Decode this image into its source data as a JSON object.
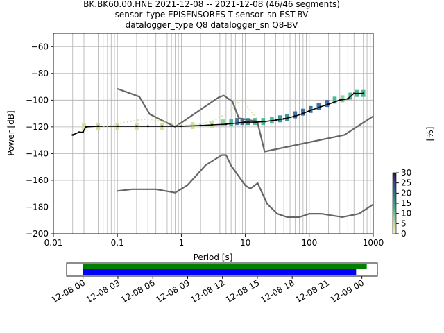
{
  "title_lines": [
    "BK.BK60.00.HNE   2021-12-08 -- 2021-12-08  (46/46 segments)",
    "sensor_type EPISENSORES-T sensor_sn EST-BV",
    "datalogger_type Q8 datalogger_sn Q8-BV"
  ],
  "chart_data": [
    {
      "type": "line",
      "subtype": "probabilistic power spectral density",
      "xlabel": "Period [s]",
      "ylabel": "Power [dB]",
      "xscale": "log",
      "xlim": [
        0.01,
        1000
      ],
      "ylim": [
        -200,
        -50
      ],
      "xticks": [
        0.01,
        0.1,
        1,
        10,
        100,
        1000
      ],
      "xtick_labels": [
        "0.01",
        "0.1",
        "1",
        "10",
        "100",
        "1000"
      ],
      "yticks": [
        -60,
        -80,
        -100,
        -120,
        -140,
        -160,
        -180,
        -200
      ],
      "ytick_labels": [
        "−60",
        "−80",
        "−100",
        "−120",
        "−140",
        "−160",
        "−180",
        "−200"
      ],
      "grid": true,
      "colorbar": {
        "label": "[%]",
        "range": [
          0,
          30
        ],
        "ticks": [
          0,
          5,
          10,
          15,
          20,
          25,
          30
        ],
        "tick_labels": [
          "0",
          "5",
          "10",
          "15",
          "20",
          "25",
          "30"
        ],
        "colors": [
          "#fde8b0",
          "#c8e090",
          "#7fcf9a",
          "#3cb08c",
          "#2a8c8c",
          "#2f6399",
          "#3b3b8f",
          "#301040"
        ]
      },
      "series": [
        {
          "role": "noise-model-high",
          "color": "#666666",
          "x": [
            0.1,
            0.22,
            0.32,
            0.8,
            3.8,
            4.6,
            6.3,
            7.9,
            15.4,
            20,
            354.8,
            1000
          ],
          "y": [
            -91.5,
            -97.4,
            -110.5,
            -120,
            -98,
            -96.5,
            -101,
            -113.5,
            -116,
            -138.5,
            -126,
            -112
          ]
        },
        {
          "role": "noise-model-low",
          "color": "#666666",
          "x": [
            0.1,
            0.17,
            0.4,
            0.8,
            1.24,
            2.4,
            4.3,
            5.0,
            6.0,
            10,
            12,
            15.6,
            21.9,
            31.6,
            45,
            70,
            101,
            154,
            328,
            600,
            1000
          ],
          "y": [
            -168,
            -166.7,
            -166.7,
            -169.2,
            -163.7,
            -148.6,
            -141.1,
            -141.1,
            -149,
            -163.8,
            -166.2,
            -162.1,
            -177.5,
            -185,
            -187.5,
            -187.5,
            -185,
            -185,
            -187.5,
            -185,
            -178
          ]
        },
        {
          "role": "mode",
          "color": "#000000",
          "x": [
            0.02,
            0.025,
            0.029,
            0.032,
            0.05,
            0.1,
            0.2,
            0.3,
            0.5,
            1,
            2,
            3,
            5,
            8,
            10,
            15,
            20,
            30,
            40,
            60,
            80,
            100,
            150,
            200,
            300,
            400,
            500,
            700
          ],
          "y": [
            -126,
            -124,
            -124,
            -120,
            -119.5,
            -119.5,
            -119.5,
            -119.5,
            -119.5,
            -119.5,
            -119,
            -118.5,
            -118,
            -117,
            -116.5,
            -116.5,
            -116,
            -115,
            -114,
            -112,
            -110,
            -108,
            -105,
            -103,
            -100,
            -99,
            -95,
            -95
          ]
        },
        {
          "role": "density-faint",
          "color": "#c8e090",
          "x": [
            0.06,
            0.1,
            0.2,
            0.3,
            0.5,
            1,
            2,
            3,
            4,
            5,
            6,
            7,
            8,
            9,
            10,
            12,
            15
          ],
          "y": [
            -120,
            -118,
            -115,
            -114,
            -116,
            -119,
            -118,
            -116,
            -113,
            -110,
            -107,
            -104,
            -101,
            -100,
            -102,
            -108,
            -113
          ]
        }
      ],
      "density_cells": [
        {
          "x": 0.03,
          "y": -120,
          "p": 3
        },
        {
          "x": 0.05,
          "y": -119.5,
          "p": 3
        },
        {
          "x": 0.1,
          "y": -119.5,
          "p": 3
        },
        {
          "x": 0.2,
          "y": -119.5,
          "p": 3
        },
        {
          "x": 0.5,
          "y": -119.5,
          "p": 3
        },
        {
          "x": 1.5,
          "y": -119,
          "p": 4
        },
        {
          "x": 3,
          "y": -118,
          "p": 6
        },
        {
          "x": 4.5,
          "y": -117,
          "p": 10
        },
        {
          "x": 6,
          "y": -117,
          "p": 12
        },
        {
          "x": 7.5,
          "y": -116,
          "p": 20
        },
        {
          "x": 9,
          "y": -116,
          "p": 22
        },
        {
          "x": 11,
          "y": -116,
          "p": 16
        },
        {
          "x": 14,
          "y": -116,
          "p": 14
        },
        {
          "x": 19,
          "y": -116,
          "p": 12
        },
        {
          "x": 26,
          "y": -115,
          "p": 14
        },
        {
          "x": 35,
          "y": -114,
          "p": 16
        },
        {
          "x": 45,
          "y": -113,
          "p": 18
        },
        {
          "x": 60,
          "y": -111,
          "p": 20
        },
        {
          "x": 80,
          "y": -109,
          "p": 22
        },
        {
          "x": 105,
          "y": -107,
          "p": 22
        },
        {
          "x": 140,
          "y": -105,
          "p": 22
        },
        {
          "x": 190,
          "y": -102.5,
          "p": 22
        },
        {
          "x": 250,
          "y": -100,
          "p": 12
        },
        {
          "x": 330,
          "y": -99,
          "p": 10
        },
        {
          "x": 440,
          "y": -97,
          "p": 12
        },
        {
          "x": 560,
          "y": -95,
          "p": 14
        },
        {
          "x": 700,
          "y": -95,
          "p": 14
        }
      ]
    },
    {
      "type": "timeline",
      "xlim": [
        "2021-12-07 22:35",
        "2021-12-09 01:20"
      ],
      "xticks": [
        "2021-12-08 00:00",
        "2021-12-08 03:00",
        "2021-12-08 06:00",
        "2021-12-08 09:00",
        "2021-12-08 12:00",
        "2021-12-08 15:00",
        "2021-12-08 18:00",
        "2021-12-08 21:00",
        "2021-12-09 00:00"
      ],
      "xtick_labels": [
        "12-08 00",
        "12-08 03",
        "12-08 06",
        "12-08 09",
        "12-08 12",
        "12-08 15",
        "12-08 18",
        "12-08 21",
        "12-09 00"
      ],
      "bars": [
        {
          "role": "data-coverage",
          "color": "#008000",
          "start": "2021-12-08 00:00",
          "end": "2021-12-09 00:25"
        },
        {
          "role": "psd-segments",
          "color": "#0000ff",
          "start": "2021-12-08 00:00",
          "end": "2021-12-08 23:30"
        }
      ]
    }
  ]
}
